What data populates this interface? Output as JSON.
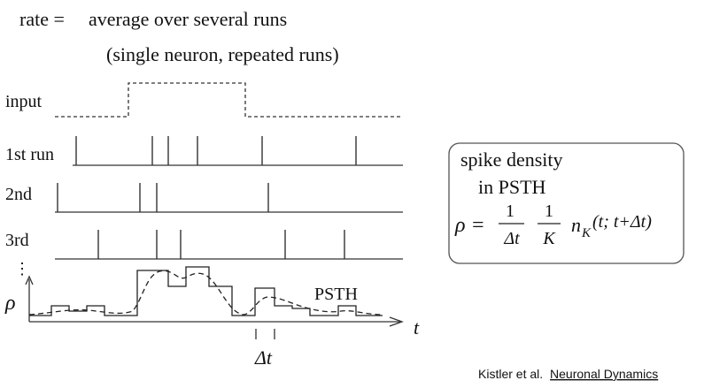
{
  "title": {
    "line1_left": "rate =",
    "line1_right": "average over several runs",
    "line2": "(single neuron, repeated runs)"
  },
  "rows": {
    "input": "input",
    "run1": "1st run",
    "run2": "2nd",
    "run3": "3rd",
    "ellipsis": "⋮",
    "rho": "ρ"
  },
  "psth_label": "PSTH",
  "time_axis": {
    "t": "t",
    "dt": "Δt"
  },
  "box": {
    "line1": "spike density",
    "line2": "in PSTH",
    "rho_eq": "ρ =",
    "num1": "1",
    "den1": "Δt",
    "num2": "1",
    "den2": "K",
    "n": "n",
    "sub_k": "K",
    "args": "(t; t+Δt)"
  },
  "credit": {
    "authors": "Kistler et al.",
    "book": "Neuronal Dynamics"
  },
  "spikes": {
    "run1": [
      86,
      172,
      190,
      223,
      296,
      402
    ],
    "run2": [
      65,
      158,
      177,
      303
    ],
    "run3": [
      111,
      177,
      204,
      322,
      389
    ]
  }
}
